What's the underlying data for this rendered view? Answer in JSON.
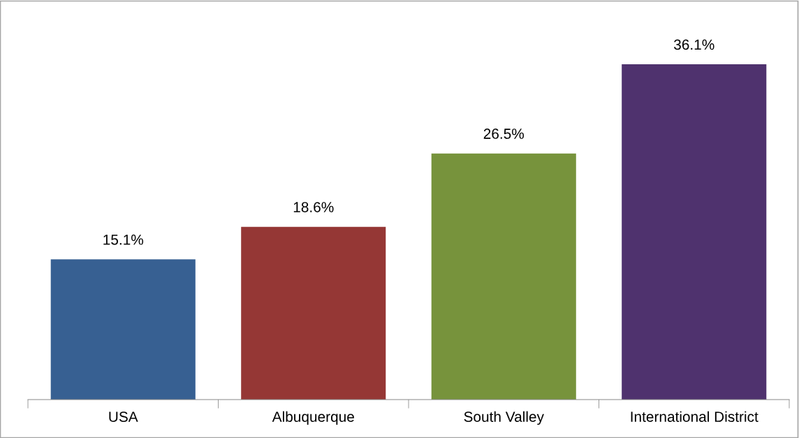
{
  "chart_data": {
    "type": "bar",
    "categories": [
      "USA",
      "Albuquerque",
      "South Valley",
      "International District"
    ],
    "values": [
      15.1,
      18.6,
      26.5,
      36.1
    ],
    "colors": [
      "#376092",
      "#953735",
      "#77933c",
      "#4f326e"
    ],
    "value_labels": [
      "15.1%",
      "18.6%",
      "26.5%",
      "36.1%"
    ],
    "tick_labels": "x",
    "grid": false,
    "legend": false
  }
}
